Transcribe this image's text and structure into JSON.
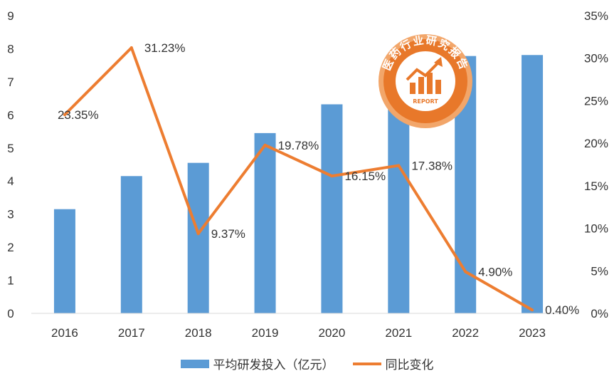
{
  "chart_data": {
    "type": "bar",
    "categories": [
      "2016",
      "2017",
      "2018",
      "2019",
      "2020",
      "2021",
      "2022",
      "2023"
    ],
    "series": [
      {
        "name": "平均研发投入（亿元）",
        "kind": "bar",
        "axis": "left",
        "color": "#5b9bd5",
        "values": [
          3.15,
          4.15,
          4.55,
          5.45,
          6.32,
          7.42,
          7.78,
          7.81
        ]
      },
      {
        "name": "同比变化",
        "kind": "line",
        "axis": "right",
        "color": "#ed7d31",
        "values": [
          23.35,
          31.23,
          9.37,
          19.78,
          16.15,
          17.38,
          4.9,
          0.4
        ],
        "labels": [
          "23.35%",
          "31.23%",
          "9.37%",
          "19.78%",
          "16.15%",
          "17.38%",
          "4.90%",
          "0.40%"
        ]
      }
    ],
    "y_left": {
      "range": [
        0,
        9
      ],
      "ticks": [
        "0",
        "1",
        "2",
        "3",
        "4",
        "5",
        "6",
        "7",
        "8",
        "9"
      ]
    },
    "y_right": {
      "range": [
        0,
        35
      ],
      "ticks": [
        "0%",
        "5%",
        "10%",
        "15%",
        "20%",
        "25%",
        "30%",
        "35%"
      ]
    },
    "grid": false,
    "legend_position": "bottom"
  },
  "watermark": {
    "text": "医药行业研究报告",
    "badge_text": "REPORT",
    "color": "#e8782a"
  }
}
